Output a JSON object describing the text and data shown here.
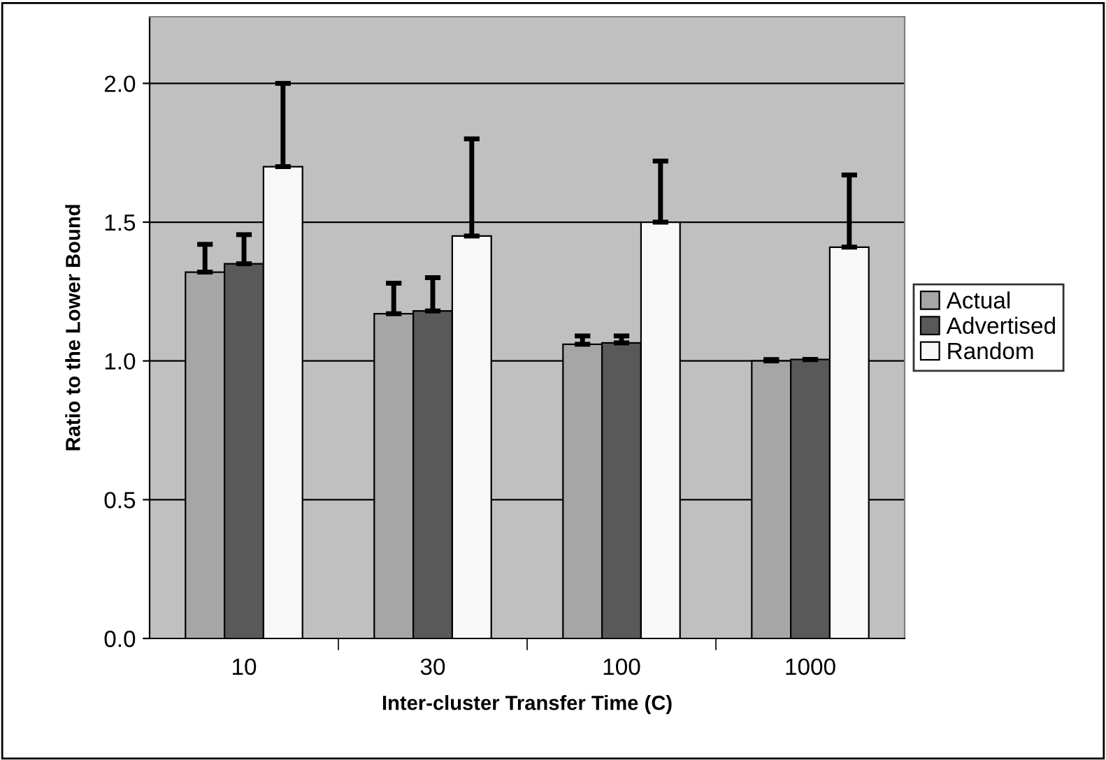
{
  "chart_data": {
    "type": "bar",
    "xlabel": "Inter-cluster Transfer Time (C)",
    "ylabel": "Ratio to the Lower Bound",
    "categories": [
      "10",
      "30",
      "100",
      "1000"
    ],
    "series": [
      {
        "name": "Actual",
        "color": "#a6a6a6",
        "values": [
          1.32,
          1.17,
          1.06,
          1.0
        ],
        "errors": [
          [
            1.32,
            1.42
          ],
          [
            1.17,
            1.28
          ],
          [
            1.06,
            1.09
          ],
          [
            1.0,
            1.005
          ]
        ]
      },
      {
        "name": "Advertised",
        "color": "#595959",
        "values": [
          1.35,
          1.18,
          1.065,
          1.005
        ],
        "errors": [
          [
            1.35,
            1.455
          ],
          [
            1.18,
            1.3
          ],
          [
            1.065,
            1.09
          ],
          [
            1.005,
            1.005
          ]
        ]
      },
      {
        "name": "Random",
        "color": "#f8f8f8",
        "values": [
          1.7,
          1.45,
          1.5,
          1.41
        ],
        "errors": [
          [
            1.7,
            2.0
          ],
          [
            1.45,
            1.8
          ],
          [
            1.5,
            1.72
          ],
          [
            1.41,
            1.67
          ]
        ]
      }
    ],
    "ylim": [
      0,
      2.24
    ],
    "yticks": [
      {
        "value": 0,
        "label": "0.0"
      },
      {
        "value": 0.5,
        "label": "0.5"
      },
      {
        "value": 1.0,
        "label": "1.0"
      },
      {
        "value": 1.5,
        "label": "1.5"
      },
      {
        "value": 2.0,
        "label": "2.0"
      }
    ],
    "grid": "y",
    "legend": "right"
  }
}
